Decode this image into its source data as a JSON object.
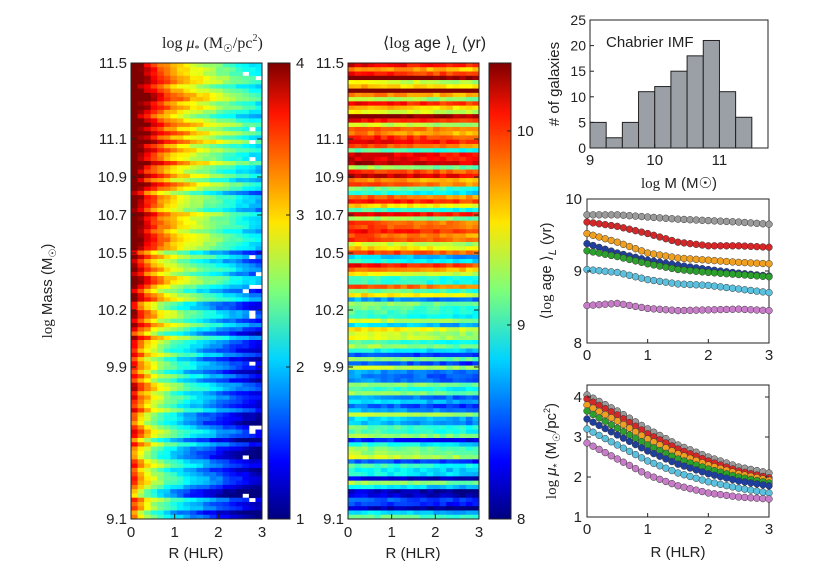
{
  "chart_data": [
    {
      "type": "heatmap",
      "id": "density",
      "title_prefix": "log",
      "title_symbol": "μ",
      "title_sub": "*",
      "title_units": "(M",
      "title_units_sun": "☉",
      "title_units_rest": "/pc",
      "title_units_sup": "2",
      "title_units_end": ")",
      "xlabel": "R (HLR)",
      "ylabel_log": "log",
      "ylabel": "Mass (M",
      "ylabel_sun": "☉",
      "ylabel_end": ")",
      "xlim": [
        0,
        3
      ],
      "ylim": [
        9.1,
        11.5
      ],
      "x_ticks": [
        "0",
        "1",
        "2",
        "3"
      ],
      "y_ticks": [
        "9.1",
        "9.9",
        "10.2",
        "10.5",
        "10.7",
        "10.9",
        "11.1",
        "11.5"
      ],
      "y_tick_values": [
        9.1,
        9.9,
        10.2,
        10.5,
        10.7,
        10.9,
        11.1,
        11.5
      ],
      "colorbar_ticks": [
        "1",
        "2",
        "3",
        "4"
      ],
      "colorbar_range": [
        1,
        4
      ],
      "n_rows": 107,
      "n_cols": 20
    },
    {
      "type": "heatmap",
      "id": "age",
      "title_left": "⟨",
      "title_log": "log",
      "title_age": "age",
      "title_right": "⟩",
      "title_sub": "L",
      "title_units": "(yr)",
      "xlabel": "R (HLR)",
      "xlim": [
        0,
        3
      ],
      "ylim": [
        9.1,
        11.5
      ],
      "x_ticks": [
        "0",
        "1",
        "2",
        "3"
      ],
      "y_ticks": [
        "9.1",
        "9.9",
        "10.2",
        "10.5",
        "10.7",
        "10.9",
        "11.1",
        "11.5"
      ],
      "y_tick_values": [
        9.1,
        9.9,
        10.2,
        10.5,
        10.7,
        10.9,
        11.1,
        11.5
      ],
      "colorbar_ticks": [
        "8",
        "9",
        "10"
      ],
      "colorbar_tick_values": [
        8,
        9,
        10
      ],
      "colorbar_range": [
        8,
        10.35
      ],
      "n_rows": 107,
      "n_cols": 20
    },
    {
      "type": "bar",
      "id": "histogram",
      "annotation": "Chabrier IMF",
      "ylabel": "# of galaxies",
      "xlabel_log": "log",
      "xlabel": "M (M",
      "xlabel_sun": "☉",
      "xlabel_end": ")",
      "bin_edges": [
        9.0,
        9.25,
        9.5,
        9.75,
        10.0,
        10.25,
        10.5,
        10.75,
        11.0,
        11.25,
        11.5
      ],
      "values": [
        5,
        2,
        5,
        11,
        12,
        15,
        18,
        21,
        11,
        6
      ],
      "xlim": [
        9.0,
        11.75
      ],
      "ylim": [
        0,
        25
      ],
      "x_ticks": [
        "9",
        "10",
        "11"
      ],
      "x_tick_values": [
        9,
        10,
        11
      ],
      "y_ticks": [
        "0",
        "5",
        "10",
        "15",
        "20",
        "25"
      ],
      "y_tick_values": [
        0,
        5,
        10,
        15,
        20,
        25
      ],
      "bar_color": "#9aa0a6"
    },
    {
      "type": "scatter",
      "id": "age_profiles",
      "ylabel_left": "⟨",
      "ylabel_log": "log",
      "ylabel_age": "age",
      "ylabel_right": "⟩",
      "ylabel_sub": "L",
      "ylabel_units": "(yr)",
      "xlim": [
        0,
        3
      ],
      "ylim": [
        8,
        10
      ],
      "x_ticks": [
        "0",
        "1",
        "2",
        "3"
      ],
      "x_tick_values": [
        0,
        1,
        2,
        3
      ],
      "y_ticks": [
        "8",
        "9",
        "10"
      ],
      "y_tick_values": [
        8,
        9,
        10
      ],
      "series": [
        {
          "name": "grey",
          "color": "#9a9a9a",
          "values": [
            9.78,
            9.78,
            9.75,
            9.72,
            9.7,
            9.68,
            9.65
          ]
        },
        {
          "name": "red",
          "color": "#d62728",
          "values": [
            9.68,
            9.62,
            9.52,
            9.4,
            9.35,
            9.35,
            9.33
          ]
        },
        {
          "name": "orange",
          "color": "#f0a020",
          "values": [
            9.52,
            9.4,
            9.25,
            9.18,
            9.15,
            9.12,
            9.1
          ]
        },
        {
          "name": "blue",
          "color": "#1f3f9f",
          "values": [
            9.38,
            9.25,
            9.15,
            9.08,
            9.02,
            8.97,
            8.93
          ]
        },
        {
          "name": "green",
          "color": "#2ca02c",
          "values": [
            9.28,
            9.2,
            9.1,
            9.02,
            8.98,
            8.95,
            8.92
          ]
        },
        {
          "name": "cyan",
          "color": "#5bc0de",
          "values": [
            9.02,
            8.98,
            8.88,
            8.82,
            8.8,
            8.75,
            8.7
          ]
        },
        {
          "name": "purple",
          "color": "#c77cc7",
          "values": [
            8.52,
            8.55,
            8.48,
            8.45,
            8.46,
            8.47,
            8.45
          ]
        }
      ]
    },
    {
      "type": "scatter",
      "id": "density_profiles",
      "ylabel_log": "log",
      "ylabel_symbol": "μ",
      "ylabel_sub": "*",
      "ylabel_units": "(M",
      "ylabel_sun": "☉",
      "ylabel_rest": "/pc",
      "ylabel_sup": "2",
      "ylabel_end": ")",
      "xlabel": "R (HLR)",
      "xlim": [
        0,
        3
      ],
      "ylim": [
        1,
        4.3
      ],
      "x_ticks": [
        "0",
        "1",
        "2",
        "3"
      ],
      "x_tick_values": [
        0,
        1,
        2,
        3
      ],
      "y_ticks": [
        "1",
        "2",
        "3",
        "4"
      ],
      "y_tick_values": [
        1,
        2,
        3,
        4
      ],
      "series": [
        {
          "name": "grey",
          "color": "#9a9a9a",
          "values": [
            4.05,
            3.65,
            3.2,
            2.8,
            2.5,
            2.25,
            2.1
          ]
        },
        {
          "name": "red",
          "color": "#d62728",
          "values": [
            3.95,
            3.55,
            3.08,
            2.7,
            2.4,
            2.15,
            1.98
          ]
        },
        {
          "name": "orange",
          "color": "#f0a020",
          "values": [
            3.8,
            3.4,
            2.95,
            2.58,
            2.3,
            2.08,
            1.92
          ]
        },
        {
          "name": "green",
          "color": "#2ca02c",
          "values": [
            3.65,
            3.22,
            2.8,
            2.45,
            2.2,
            2.0,
            1.85
          ]
        },
        {
          "name": "blue",
          "color": "#1f3f9f",
          "values": [
            3.45,
            3.05,
            2.65,
            2.32,
            2.08,
            1.9,
            1.78
          ]
        },
        {
          "name": "cyan",
          "color": "#5bc0de",
          "values": [
            3.2,
            2.8,
            2.4,
            2.1,
            1.88,
            1.72,
            1.6
          ]
        },
        {
          "name": "purple",
          "color": "#c77cc7",
          "values": [
            2.85,
            2.45,
            2.05,
            1.78,
            1.6,
            1.5,
            1.45
          ]
        }
      ]
    }
  ]
}
